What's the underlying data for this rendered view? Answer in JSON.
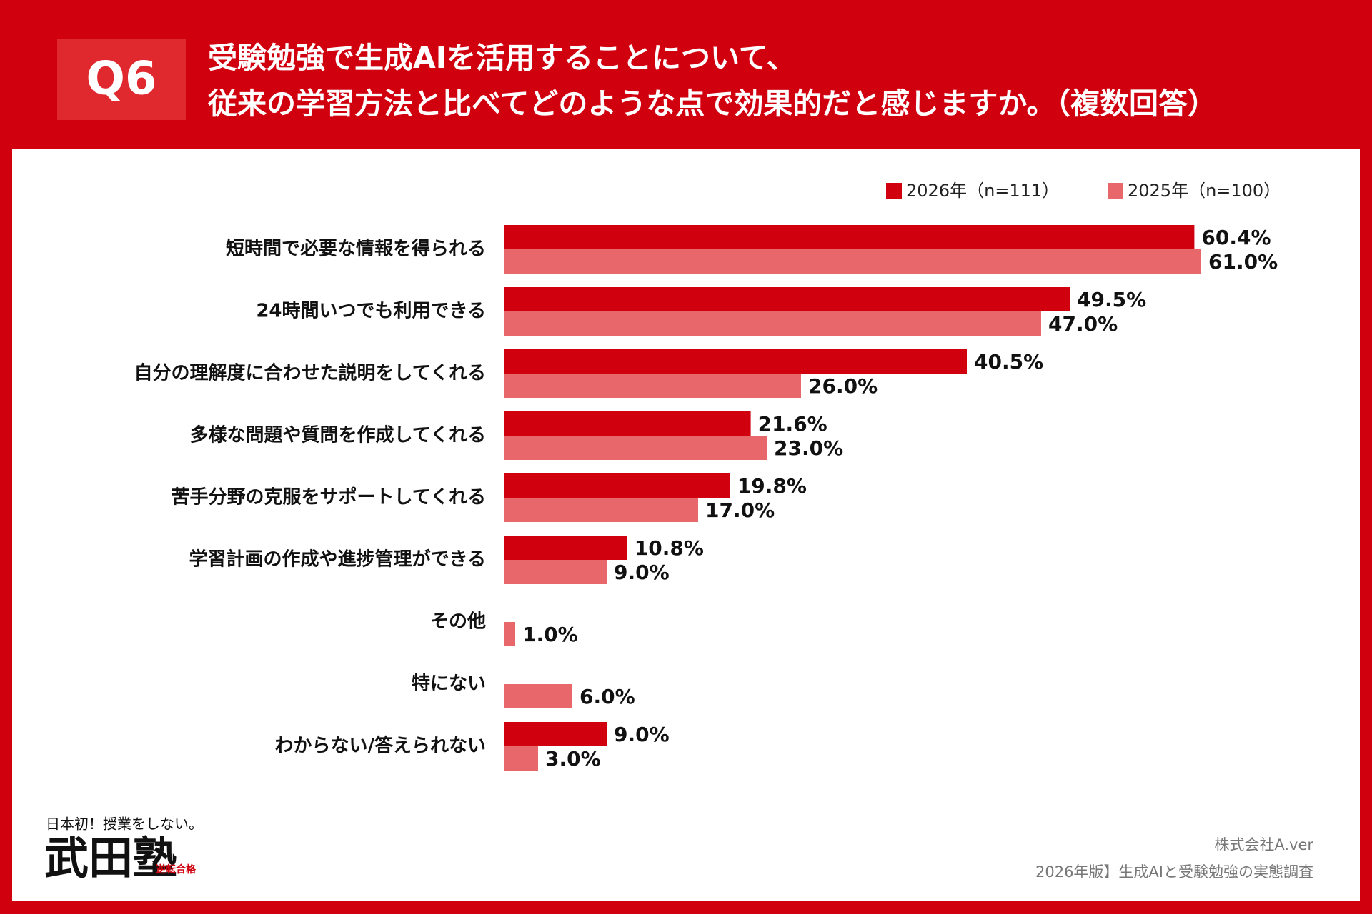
{
  "header": {
    "badge": "Q6"
  },
  "chart_data": {
    "type": "hbar",
    "title": [
      "受験勉強で生成AIを活用することについて、",
      "従来の学習方法と比べてどのような点で効果的だと感じますか。（複数回答）"
    ],
    "categories": [
      "短時間で必要な情報を得られる",
      "24時間いつでも利用できる",
      "自分の理解度に合わせた説明をしてくれる",
      "多様な問題や質問を作成してくれる",
      "苦手分野の克服をサポートしてくれる",
      "学習計画の作成や進捗管理ができる",
      "その他",
      "特にない",
      "わからない/答えられない"
    ],
    "series": [
      {
        "name": "2026年（n=111）",
        "color": "#d0000f",
        "values": [
          60.4,
          49.5,
          40.5,
          21.6,
          19.8,
          10.8,
          null,
          null,
          9.0
        ],
        "value_labels": [
          "60.4%",
          "49.5%",
          "40.5%",
          "21.6%",
          "19.8%",
          "10.8%",
          null,
          null,
          "9.0%"
        ]
      },
      {
        "name": "2025年（n=100）",
        "color": "#e8676a",
        "values": [
          61.0,
          47.0,
          26.0,
          23.0,
          17.0,
          9.0,
          1.0,
          6.0,
          3.0
        ],
        "value_labels": [
          "61.0%",
          "47.0%",
          "26.0%",
          "23.0%",
          "17.0%",
          "9.0%",
          "1.0%",
          "6.0%",
          "3.0%"
        ]
      }
    ]
  },
  "logo": {
    "tagline": "日本初！授業をしない。",
    "name": "武田塾",
    "stamp": "逆転合格"
  },
  "footer": {
    "company": "株式会社A.ver",
    "source": "2026年版】生成AIと受験勉強の実態調査"
  }
}
